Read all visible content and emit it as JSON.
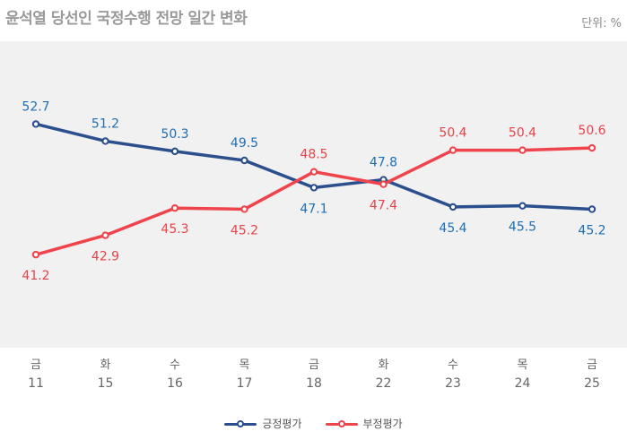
{
  "title": "윤석열 당선인 국정수행 전망 일간 변화",
  "unit": "단위: %",
  "chart_data": {
    "type": "line",
    "categories": [
      {
        "day": "금",
        "date": "11"
      },
      {
        "day": "화",
        "date": "15"
      },
      {
        "day": "수",
        "date": "16"
      },
      {
        "day": "목",
        "date": "17"
      },
      {
        "day": "금",
        "date": "18"
      },
      {
        "day": "화",
        "date": "22"
      },
      {
        "day": "수",
        "date": "23"
      },
      {
        "day": "목",
        "date": "24"
      },
      {
        "day": "금",
        "date": "25"
      }
    ],
    "series": [
      {
        "name": "긍정평가",
        "color": "#2b4f8c",
        "label_color": "#1f6fb5",
        "values": [
          52.7,
          51.2,
          50.3,
          49.5,
          47.1,
          47.8,
          45.4,
          45.5,
          45.2
        ],
        "labels": [
          "52.7",
          "51.2",
          "50.3",
          "49.5",
          "47.1",
          "47.8",
          "45.4",
          "45.5",
          "45.2"
        ],
        "label_side": [
          "above",
          "above",
          "above",
          "above",
          "below",
          "above",
          "below",
          "below",
          "below"
        ]
      },
      {
        "name": "부정평가",
        "color": "#f0444d",
        "label_color": "#e8434a",
        "values": [
          41.2,
          42.9,
          45.3,
          45.2,
          48.5,
          47.4,
          50.4,
          50.4,
          50.6
        ],
        "labels": [
          "41.2",
          "42.9",
          "45.3",
          "45.2",
          "48.5",
          "47.4",
          "50.4",
          "50.4",
          "50.6"
        ],
        "label_side": [
          "below",
          "below",
          "below",
          "below",
          "above",
          "below",
          "above",
          "above",
          "above"
        ]
      }
    ],
    "ylim": [
      33,
      60
    ],
    "plot_background": "#f1f1f1",
    "grid": false,
    "legend_position": "bottom-center"
  }
}
